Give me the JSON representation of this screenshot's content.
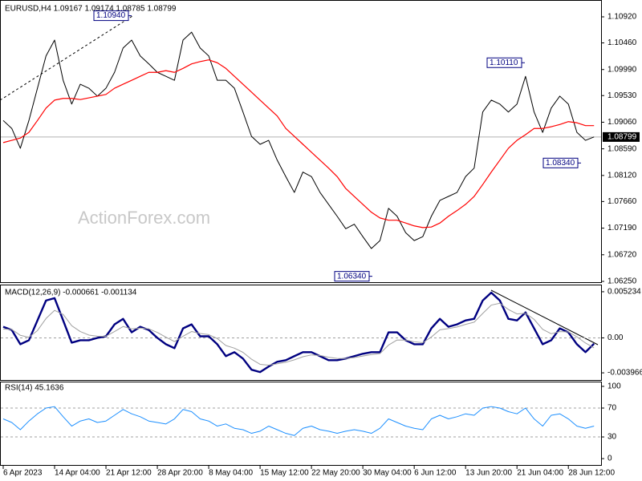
{
  "chart_data": [
    {
      "type": "line",
      "title": "EURUSD,H4  1.09167 1.09174 1.08785 1.08799",
      "watermark": "ActionForex.com",
      "categories": [
        "6 Apr 2023",
        null,
        null,
        null,
        null,
        null,
        "14 Apr 04:00",
        null,
        null,
        null,
        null,
        null,
        "21 Apr 12:00",
        null,
        null,
        null,
        null,
        null,
        "28 Apr 20:00",
        null,
        null,
        null,
        null,
        null,
        "8 May 04:00",
        null,
        null,
        null,
        null,
        null,
        "15 May 12:00",
        null,
        null,
        null,
        null,
        null,
        "22 May 20:00",
        null,
        null,
        null,
        null,
        null,
        "30 May 04:00",
        null,
        null,
        null,
        null,
        null,
        "6 Jun 12:00",
        null,
        null,
        null,
        null,
        null,
        "13 Jun 20:00",
        null,
        null,
        null,
        null,
        null,
        "21 Jun 04:00",
        null,
        null,
        null,
        null,
        null,
        "28 Jun 12:00",
        null,
        null,
        null
      ],
      "series": [
        {
          "color": "#000000",
          "values": [
            1.0909,
            1.0895,
            1.086,
            1.0909,
            1.0966,
            1.1023,
            1.1051,
            1.098,
            1.0938,
            1.0973,
            1.0966,
            1.0952,
            1.0966,
            1.0994,
            1.1037,
            1.1051,
            1.1023,
            1.1009,
            1.0994,
            1.0987,
            1.098,
            1.1051,
            1.1065,
            1.1037,
            1.1023,
            1.098,
            1.098,
            1.0966,
            1.0924,
            1.0881,
            1.0867,
            1.0874,
            1.0839,
            1.081,
            1.0782,
            1.0818,
            1.081,
            1.0782,
            1.0761,
            1.074,
            1.0718,
            1.0726,
            1.0704,
            1.0683,
            1.0697,
            1.0754,
            1.074,
            1.0711,
            1.0697,
            1.0704,
            1.074,
            1.0768,
            1.0775,
            1.0782,
            1.081,
            1.0825,
            1.0924,
            1.0945,
            1.0938,
            1.0924,
            1.0938,
            1.0987,
            1.0924,
            1.0888,
            1.0931,
            1.0952,
            1.0938,
            1.0888,
            1.0874,
            1.088
          ]
        },
        {
          "color": "#ff0000",
          "values": [
            1.087,
            1.0874,
            1.0878,
            1.0888,
            1.0909,
            1.0931,
            1.0945,
            1.0948,
            1.0948,
            1.0946,
            1.0949,
            1.0952,
            1.0955,
            1.0966,
            1.0973,
            1.098,
            1.0987,
            1.0994,
            1.0994,
            1.0997,
            1.0994,
            1.1001,
            1.1009,
            1.1013,
            1.1016,
            1.1011,
            1.1001,
            1.0987,
            1.0973,
            1.0959,
            1.0945,
            1.0931,
            1.0917,
            1.0895,
            1.0881,
            1.0867,
            1.0853,
            1.0839,
            1.0825,
            1.081,
            1.0789,
            1.0775,
            1.0761,
            1.0747,
            1.0737,
            1.0733,
            1.0733,
            1.0728,
            1.0723,
            1.072,
            1.0721,
            1.0728,
            1.074,
            1.075,
            1.0761,
            1.0775,
            1.0796,
            1.0818,
            1.0839,
            1.086,
            1.0874,
            1.0884,
            1.0895,
            1.0895,
            1.0898,
            1.0902,
            1.0907,
            1.0905,
            1.09,
            1.09
          ]
        }
      ],
      "ylim": [
        1.06236,
        1.11189
      ],
      "yticks": [
        {
          "value": 1.1092,
          "label": "1.10920"
        },
        {
          "value": 1.1046,
          "label": "1.10460"
        },
        {
          "value": 1.0999,
          "label": "1.09990"
        },
        {
          "value": 1.0953,
          "label": "1.09530"
        },
        {
          "value": 1.0906,
          "label": "1.09060"
        },
        {
          "value": 1.0859,
          "label": "1.08590"
        },
        {
          "value": 1.0812,
          "label": "1.08120"
        },
        {
          "value": 1.0766,
          "label": "1.07660"
        },
        {
          "value": 1.0719,
          "label": "1.07190"
        },
        {
          "value": 1.0672,
          "label": "1.06720"
        },
        {
          "value": 1.0625,
          "label": "1.06250"
        }
      ],
      "annotations": [
        {
          "value": 1.1094,
          "label": "1.10940"
        },
        {
          "value": 1.1011,
          "label": "1.10110"
        },
        {
          "value": 1.0834,
          "label": "1.08340"
        },
        {
          "value": 1.0634,
          "label": "1.06340"
        }
      ],
      "last_price": {
        "value": 1.08799,
        "label": "1.08799"
      }
    },
    {
      "type": "line",
      "title": "MACD(12,26,9) -0.000661 -0.001134",
      "series": [
        {
          "color": "#000080",
          "values": [
            0.00126,
            0.0009,
            -0.00072,
            -0.00027,
            0.00198,
            0.00424,
            0.00451,
            0.00198,
            -0.00054,
            -0.00027,
            -0.00027,
            0,
            0.00018,
            0.00153,
            0.00216,
            0.00063,
            0.00126,
            0.0009,
            0,
            -0.00072,
            -0.00117,
            0.00108,
            0.00153,
            0.00018,
            0.00018,
            -0.00072,
            -0.00207,
            -0.00162,
            -0.00235,
            -0.00361,
            -0.00388,
            -0.00325,
            -0.00271,
            -0.00253,
            -0.00207,
            -0.00162,
            -0.00162,
            -0.00207,
            -0.00253,
            -0.00253,
            -0.00235,
            -0.00207,
            -0.0018,
            -0.00162,
            -0.00162,
            0.00063,
            0.00063,
            -0.00027,
            -0.00072,
            -0.00072,
            0.00108,
            0.00216,
            0.00126,
            0.00153,
            0.00198,
            0.00216,
            0.00424,
            0.00514,
            0.00424,
            0.00216,
            0.00198,
            0.00289,
            0.00108,
            -0.00072,
            -0.00027,
            0.00108,
            0.00063,
            -0.00072,
            -0.00162,
            -0.00066
          ]
        },
        {
          "color": "#a0a0a0",
          "values": [
            0.001,
            0.00096,
            0.00029,
            7e-05,
            0.00083,
            0.0022,
            0.00312,
            0.00266,
            0.00138,
            0.00072,
            0.00032,
            0.00019,
            0.00018,
            0.00072,
            0.00129,
            0.00102,
            0.00111,
            0.00103,
            0.00062,
            8e-05,
            -0.00042,
            0.00018,
            0.00072,
            0.0005,
            0.00037,
            -7e-05,
            -0.00087,
            -0.00117,
            -0.00164,
            -0.00242,
            -0.003,
            -0.0031,
            -0.00294,
            -0.00277,
            -0.00249,
            -0.00214,
            -0.00193,
            -0.00199,
            -0.0022,
            -0.00233,
            -0.00234,
            -0.00223,
            -0.00206,
            -0.00189,
            -0.00178,
            -0.00082,
            -0.00024,
            -0.00025,
            -0.00044,
            -0.00055,
            0.0001,
            0.00092,
            0.00105,
            0.00124,
            0.00153,
            0.00178,
            0.00277,
            0.00372,
            0.00393,
            0.00322,
            0.00272,
            0.00279,
            0.0021,
            0.00097,
            0.00047,
            0.00071,
            0.00068,
            0.00012,
            -0.00058,
            -0.00113
          ]
        }
      ],
      "ylim": [
        -0.004778,
        0.005955
      ],
      "yticks": [
        0.005234,
        {
          "value": 0,
          "label": "0.00"
        },
        -0.003966
      ],
      "grid": "inner"
    },
    {
      "type": "line",
      "title": "RSI(14) 45.1636",
      "series": [
        {
          "color": "#1e90ff",
          "values": [
            55,
            50,
            40,
            52,
            62,
            70,
            72,
            58,
            45,
            52,
            55,
            50,
            52,
            60,
            68,
            62,
            58,
            52,
            50,
            48,
            55,
            68,
            65,
            55,
            52,
            45,
            48,
            42,
            40,
            35,
            38,
            45,
            40,
            35,
            32,
            42,
            45,
            40,
            38,
            35,
            38,
            40,
            38,
            35,
            42,
            55,
            50,
            45,
            42,
            40,
            55,
            60,
            55,
            58,
            62,
            60,
            70,
            72,
            70,
            65,
            62,
            70,
            55,
            45,
            60,
            62,
            55,
            45,
            42,
            45
          ]
        }
      ],
      "ylim": [
        -8.8,
        105.5
      ],
      "yticks": [
        100,
        70,
        30,
        0
      ],
      "grid": "inner"
    }
  ]
}
